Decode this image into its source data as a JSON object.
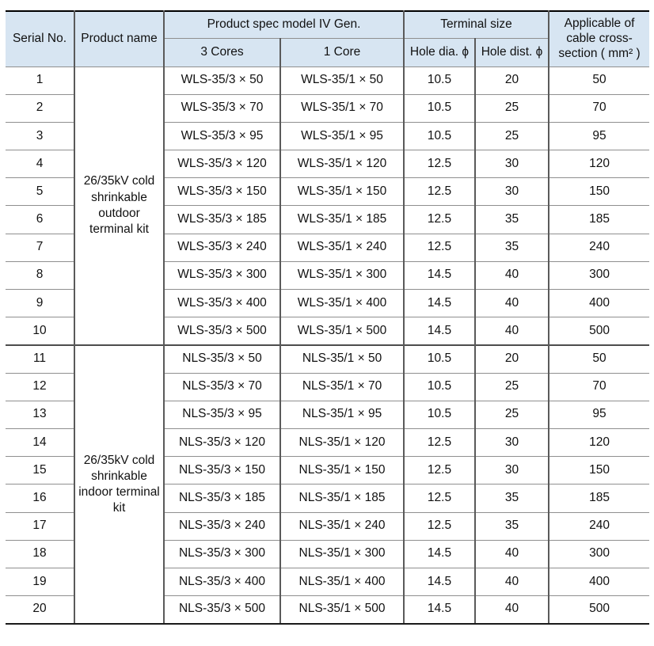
{
  "table": {
    "colors": {
      "header_bg": "#d7e5f2",
      "grid_line": "#8f8f8f",
      "vertical_line": "#5a5a5a",
      "frame_line": "#000000",
      "text": "#111111"
    },
    "header": {
      "serial_no": "Serial No.",
      "product_name": "Product name",
      "product_spec": "Product spec model IV Gen.",
      "cores_3": "3 Cores",
      "core_1": "1 Core",
      "terminal_size": "Terminal size",
      "hole_dia": "Hole dia. ϕ",
      "hole_dist": "Hole dist. ϕ",
      "applicable": "Applicable of cable cross-section ( mm² )"
    },
    "groups": [
      {
        "product_name": "26/35kV cold shrinkable outdoor terminal kit",
        "rows": [
          {
            "serial": "1",
            "cores3": "WLS-35/3 × 50",
            "core1": "WLS-35/1 × 50",
            "hole_dia": "10.5",
            "hole_dist": "20",
            "cross_section": "50"
          },
          {
            "serial": "2",
            "cores3": "WLS-35/3 × 70",
            "core1": "WLS-35/1 × 70",
            "hole_dia": "10.5",
            "hole_dist": "25",
            "cross_section": "70"
          },
          {
            "serial": "3",
            "cores3": "WLS-35/3 × 95",
            "core1": "WLS-35/1 × 95",
            "hole_dia": "10.5",
            "hole_dist": "25",
            "cross_section": "95"
          },
          {
            "serial": "4",
            "cores3": "WLS-35/3 × 120",
            "core1": "WLS-35/1 × 120",
            "hole_dia": "12.5",
            "hole_dist": "30",
            "cross_section": "120"
          },
          {
            "serial": "5",
            "cores3": "WLS-35/3 × 150",
            "core1": "WLS-35/1 × 150",
            "hole_dia": "12.5",
            "hole_dist": "30",
            "cross_section": "150"
          },
          {
            "serial": "6",
            "cores3": "WLS-35/3 × 185",
            "core1": "WLS-35/1 × 185",
            "hole_dia": "12.5",
            "hole_dist": "35",
            "cross_section": "185"
          },
          {
            "serial": "7",
            "cores3": "WLS-35/3 × 240",
            "core1": "WLS-35/1 × 240",
            "hole_dia": "12.5",
            "hole_dist": "35",
            "cross_section": "240"
          },
          {
            "serial": "8",
            "cores3": "WLS-35/3 × 300",
            "core1": "WLS-35/1 × 300",
            "hole_dia": "14.5",
            "hole_dist": "40",
            "cross_section": "300"
          },
          {
            "serial": "9",
            "cores3": "WLS-35/3 × 400",
            "core1": "WLS-35/1 × 400",
            "hole_dia": "14.5",
            "hole_dist": "40",
            "cross_section": "400"
          },
          {
            "serial": "10",
            "cores3": "WLS-35/3 × 500",
            "core1": "WLS-35/1 × 500",
            "hole_dia": "14.5",
            "hole_dist": "40",
            "cross_section": "500"
          }
        ]
      },
      {
        "product_name": "26/35kV cold shrinkable indoor terminal kit",
        "rows": [
          {
            "serial": "11",
            "cores3": "NLS-35/3 × 50",
            "core1": "NLS-35/1 × 50",
            "hole_dia": "10.5",
            "hole_dist": "20",
            "cross_section": "50"
          },
          {
            "serial": "12",
            "cores3": "NLS-35/3 × 70",
            "core1": "NLS-35/1 × 70",
            "hole_dia": "10.5",
            "hole_dist": "25",
            "cross_section": "70"
          },
          {
            "serial": "13",
            "cores3": "NLS-35/3 × 95",
            "core1": "NLS-35/1 × 95",
            "hole_dia": "10.5",
            "hole_dist": "25",
            "cross_section": "95"
          },
          {
            "serial": "14",
            "cores3": "NLS-35/3 × 120",
            "core1": "NLS-35/1 × 120",
            "hole_dia": "12.5",
            "hole_dist": "30",
            "cross_section": "120"
          },
          {
            "serial": "15",
            "cores3": "NLS-35/3 × 150",
            "core1": "NLS-35/1 × 150",
            "hole_dia": "12.5",
            "hole_dist": "30",
            "cross_section": "150"
          },
          {
            "serial": "16",
            "cores3": "NLS-35/3 × 185",
            "core1": "NLS-35/1 × 185",
            "hole_dia": "12.5",
            "hole_dist": "35",
            "cross_section": "185"
          },
          {
            "serial": "17",
            "cores3": "NLS-35/3 × 240",
            "core1": "NLS-35/1 × 240",
            "hole_dia": "12.5",
            "hole_dist": "35",
            "cross_section": "240"
          },
          {
            "serial": "18",
            "cores3": "NLS-35/3 × 300",
            "core1": "NLS-35/1 × 300",
            "hole_dia": "14.5",
            "hole_dist": "40",
            "cross_section": "300"
          },
          {
            "serial": "19",
            "cores3": "NLS-35/3 × 400",
            "core1": "NLS-35/1 × 400",
            "hole_dia": "14.5",
            "hole_dist": "40",
            "cross_section": "400"
          },
          {
            "serial": "20",
            "cores3": "NLS-35/3 × 500",
            "core1": "NLS-35/1 × 500",
            "hole_dia": "14.5",
            "hole_dist": "40",
            "cross_section": "500"
          }
        ]
      }
    ]
  }
}
